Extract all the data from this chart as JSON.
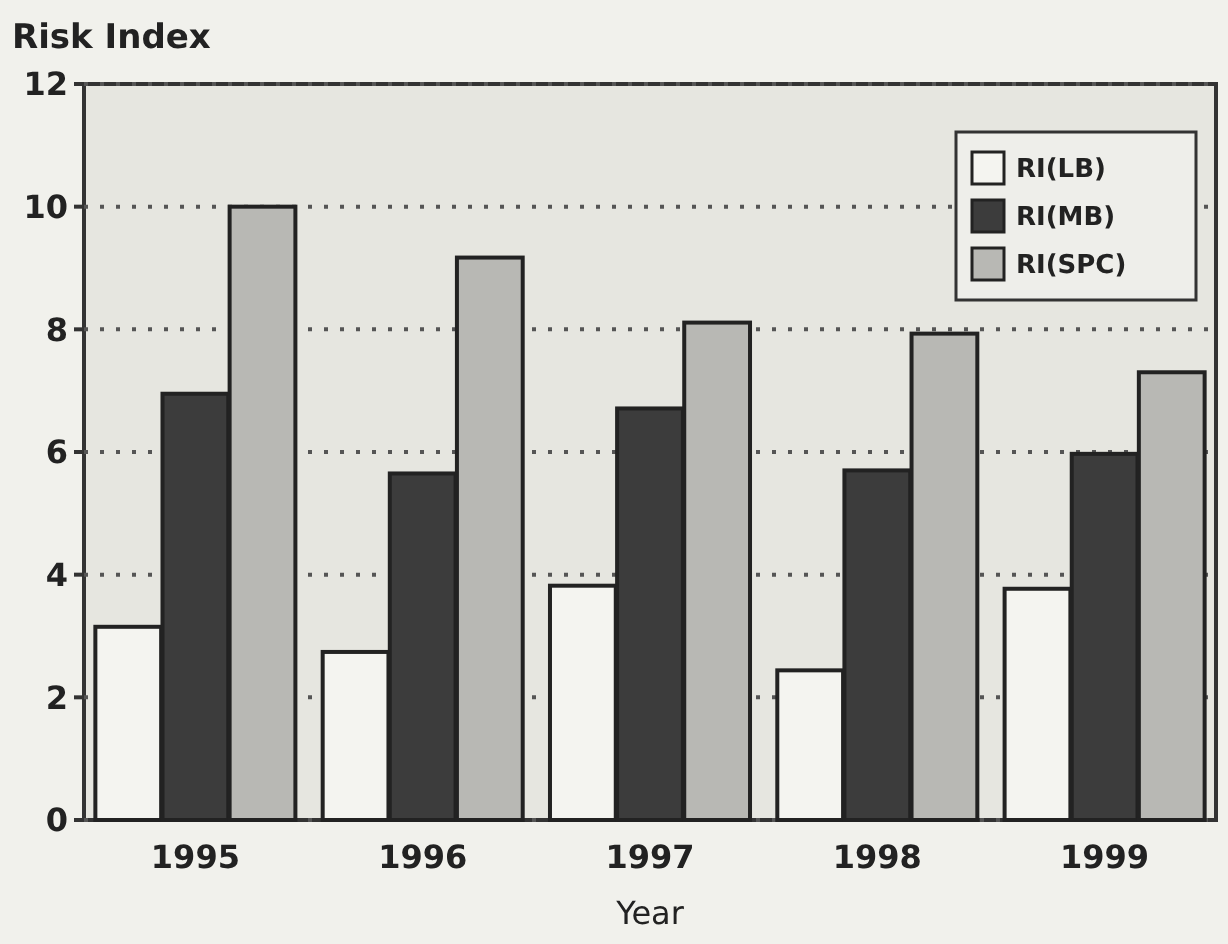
{
  "chart_data": {
    "type": "bar",
    "ylabel": "Risk Index",
    "xlabel": "Year",
    "categories": [
      "1995",
      "1996",
      "1997",
      "1998",
      "1999"
    ],
    "series": [
      {
        "name": "RI(LB)",
        "color": "#f4f4f0",
        "values": [
          3.15,
          2.74,
          3.82,
          2.44,
          3.77
        ]
      },
      {
        "name": "RI(MB)",
        "color": "#3c3c3c",
        "values": [
          6.95,
          5.65,
          6.71,
          5.7,
          5.97
        ]
      },
      {
        "name": "RI(SPC)",
        "color": "#b8b8b4",
        "values": [
          10.0,
          9.17,
          8.11,
          7.93,
          7.3
        ]
      }
    ],
    "ylim": [
      0,
      12
    ],
    "yticks": [
      0,
      2,
      4,
      6,
      8,
      10,
      12
    ],
    "grid": "y",
    "legend": "top right",
    "line_style": "dotted"
  }
}
